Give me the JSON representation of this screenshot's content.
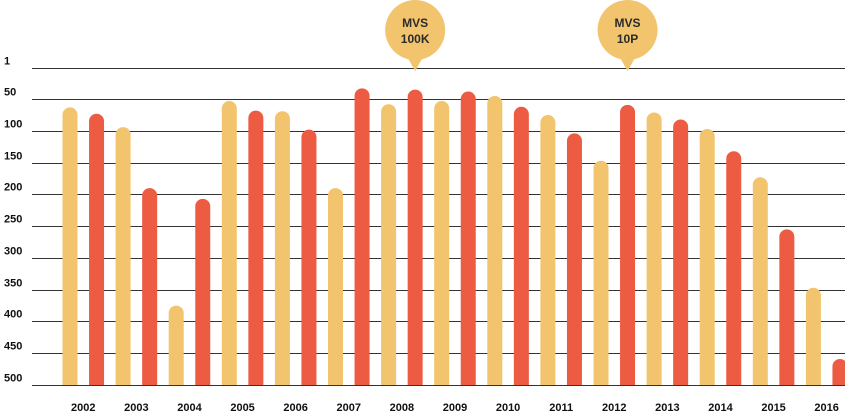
{
  "chart_data": {
    "type": "bar",
    "y_axis": {
      "ticks": [
        1,
        50,
        100,
        150,
        200,
        250,
        300,
        350,
        400,
        450,
        500
      ],
      "range": [
        1,
        500
      ],
      "inverted": true,
      "grid": true
    },
    "x_labels": [
      "2002",
      "2003",
      "2004",
      "2005",
      "2006",
      "2007",
      "2008",
      "2009",
      "2010",
      "2011",
      "2012",
      "2013",
      "2014",
      "2015",
      "2016"
    ],
    "bars": [
      {
        "color_key": "yellow",
        "value": 63
      },
      {
        "color_key": "red",
        "value": 73
      },
      {
        "color_key": "yellow",
        "value": 94
      },
      {
        "color_key": "red",
        "value": 190
      },
      {
        "color_key": "yellow",
        "value": 375
      },
      {
        "color_key": "red",
        "value": 207
      },
      {
        "color_key": "yellow",
        "value": 53
      },
      {
        "color_key": "red",
        "value": 68
      },
      {
        "color_key": "yellow",
        "value": 69
      },
      {
        "color_key": "red",
        "value": 98
      },
      {
        "color_key": "yellow",
        "value": 190
      },
      {
        "color_key": "red",
        "value": 33
      },
      {
        "color_key": "yellow",
        "value": 58
      },
      {
        "color_key": "red",
        "value": 35
      },
      {
        "color_key": "yellow",
        "value": 53
      },
      {
        "color_key": "red",
        "value": 38
      },
      {
        "color_key": "yellow",
        "value": 45
      },
      {
        "color_key": "red",
        "value": 62
      },
      {
        "color_key": "yellow",
        "value": 75
      },
      {
        "color_key": "red",
        "value": 104
      },
      {
        "color_key": "yellow",
        "value": 147
      },
      {
        "color_key": "red",
        "value": 59
      },
      {
        "color_key": "yellow",
        "value": 71
      },
      {
        "color_key": "red",
        "value": 82
      },
      {
        "color_key": "yellow",
        "value": 97
      },
      {
        "color_key": "red",
        "value": 132
      },
      {
        "color_key": "yellow",
        "value": 173
      },
      {
        "color_key": "red",
        "value": 255
      },
      {
        "color_key": "yellow",
        "value": 347
      },
      {
        "color_key": "red",
        "value": 459
      }
    ],
    "callouts": [
      {
        "line1": "MVS",
        "line2": "100K",
        "bar_index": 13
      },
      {
        "line1": "MVS",
        "line2": "10P",
        "bar_index": 21
      }
    ]
  },
  "colors": {
    "yellow": "#f2c46d",
    "red": "#ee5b43",
    "callout": "#f2c46d",
    "grid": "#333333"
  }
}
